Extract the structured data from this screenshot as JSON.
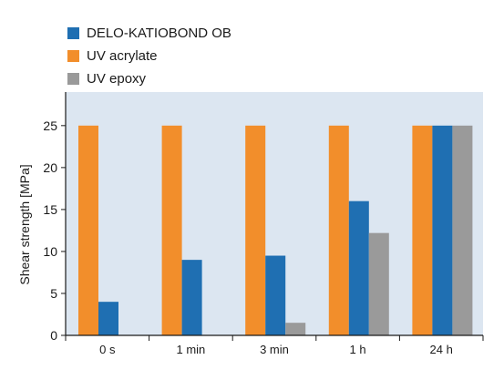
{
  "chart_data": {
    "type": "bar",
    "categories": [
      "0 s",
      "1 min",
      "3 min",
      "1 h",
      "24 h"
    ],
    "series": [
      {
        "name": "UV acrylate",
        "color": "#f28e2b",
        "values": [
          25,
          25,
          25,
          25,
          25
        ]
      },
      {
        "name": "DELO-KATIOBOND OB",
        "color": "#1f6fb2",
        "values": [
          4,
          9,
          9.5,
          16,
          25
        ]
      },
      {
        "name": "UV epoxy",
        "color": "#9a9a9a",
        "values": [
          0,
          0,
          1.5,
          12.2,
          25
        ]
      }
    ],
    "legend_order": [
      "DELO-KATIOBOND OB",
      "UV acrylate",
      "UV epoxy"
    ],
    "legend_position": "top-left",
    "title": "",
    "xlabel": "",
    "ylabel": "Shear strength [MPa]",
    "ylim": [
      0,
      29
    ],
    "yticks": [
      0,
      5,
      10,
      15,
      20,
      25
    ],
    "plot_background": "#dce6f1",
    "grid": false
  }
}
